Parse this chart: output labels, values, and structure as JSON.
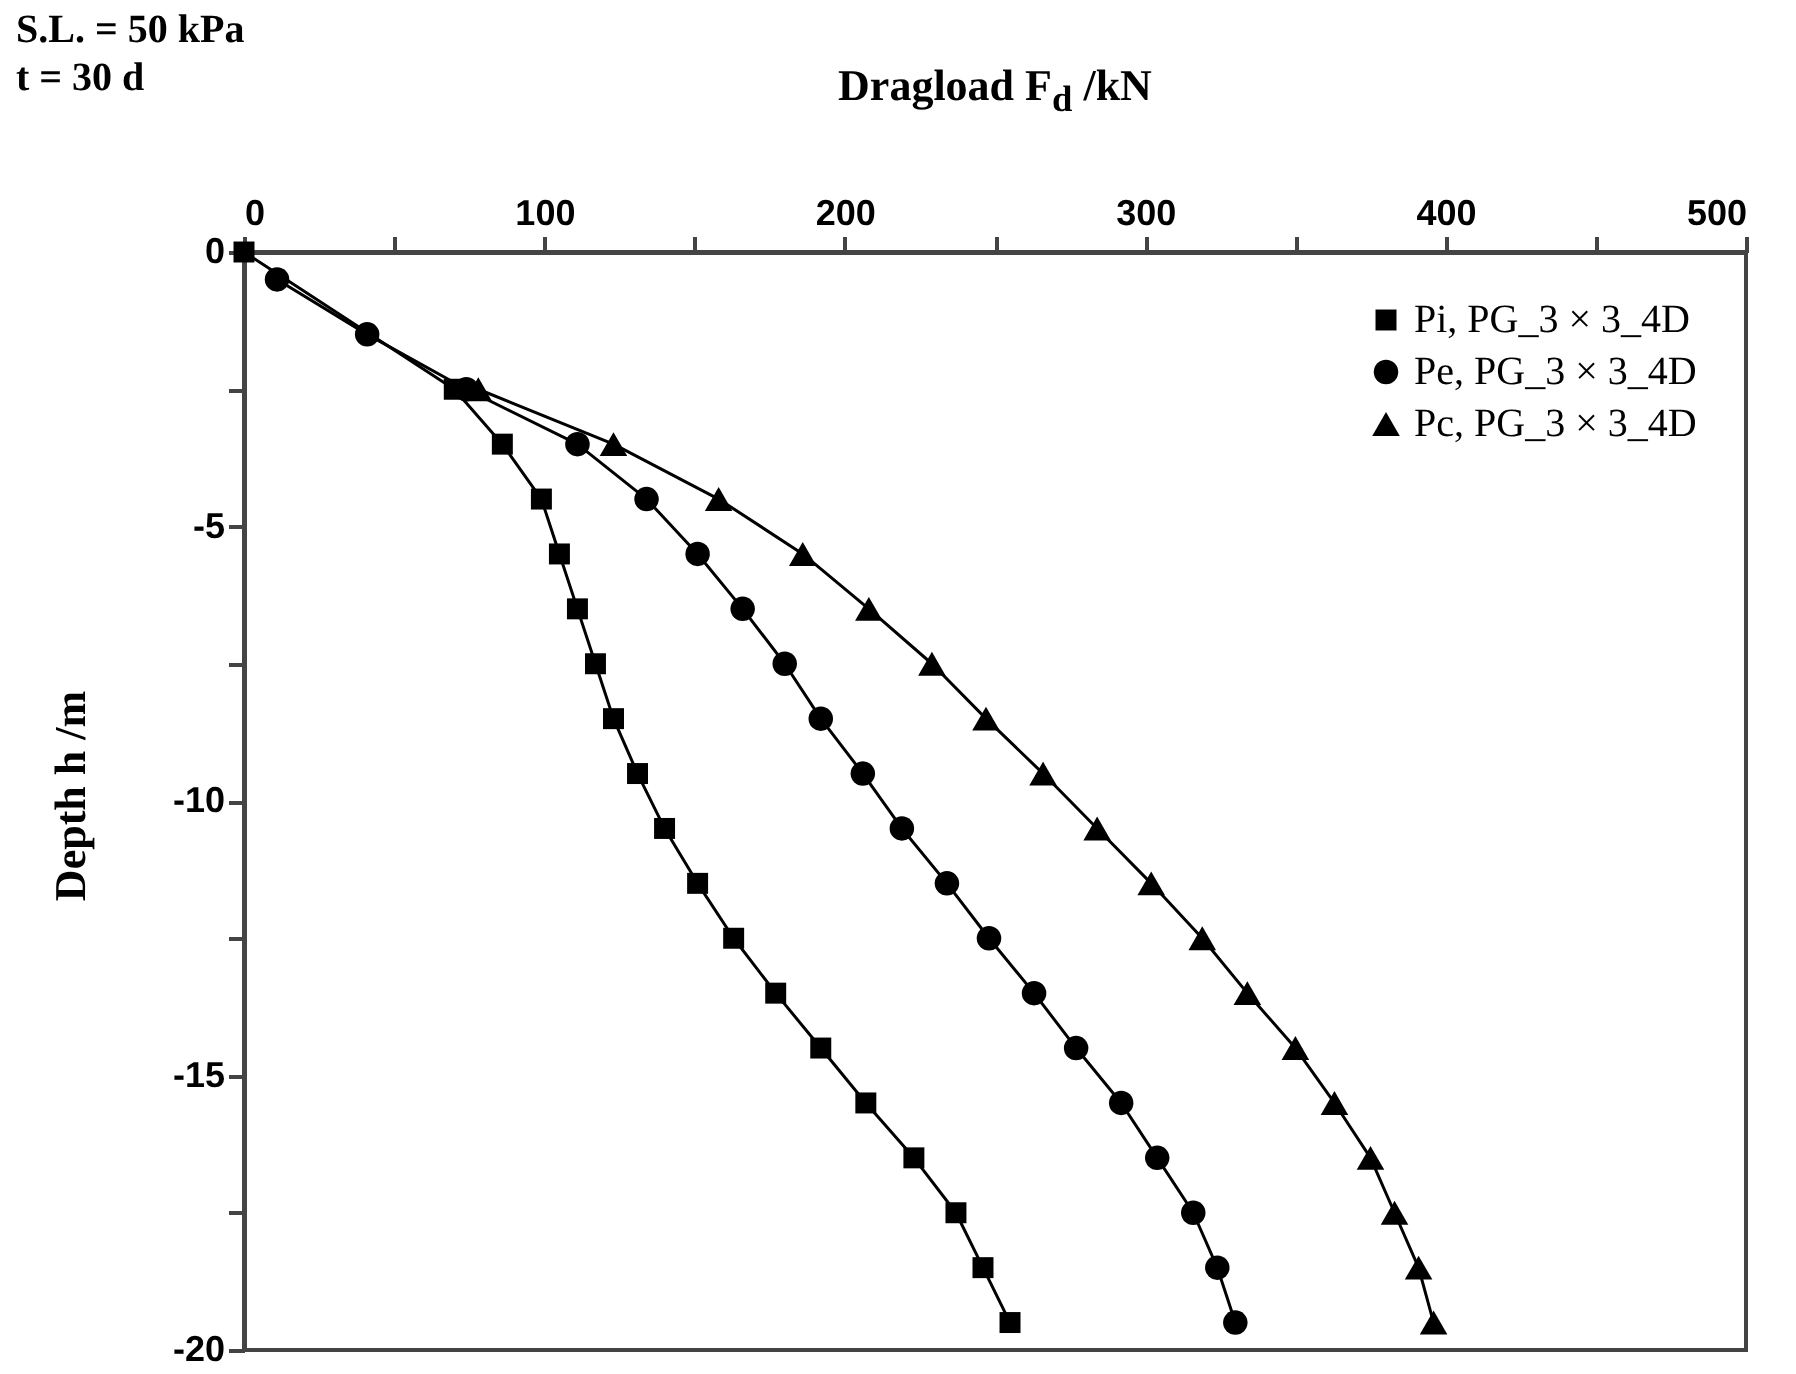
{
  "chart_data": {
    "type": "line",
    "xlabel": "Dragload F$_{d}$ /kN",
    "ylabel": "Depth h /m",
    "annotations": [
      "S.L. = 50 kPa",
      "t = 30 d"
    ],
    "xlim": [
      0,
      500
    ],
    "xticks": [
      0,
      {
        "value": 50,
        "label": null
      },
      100,
      {
        "value": 150,
        "label": null
      },
      200,
      {
        "value": 250,
        "label": null
      },
      300,
      {
        "value": 350,
        "label": null
      },
      400,
      {
        "value": 450,
        "label": null
      },
      500
    ],
    "ylim": [
      -20,
      0
    ],
    "yticks": [
      -20,
      {
        "value": -17.5,
        "label": null
      },
      -15,
      {
        "value": -12.5,
        "label": null
      },
      -10,
      {
        "value": -7.5,
        "label": null
      },
      -5,
      {
        "value": -2.5,
        "label": null
      },
      0
    ],
    "grid": false,
    "legend": "top right",
    "line_style": "solid",
    "series": [
      {
        "name": "Pi, PG_3 × 3_4D",
        "color": "#000000",
        "marker": "square",
        "x": [
          0,
          null,
          null,
          70,
          86,
          99,
          105,
          111,
          117,
          123,
          131,
          140,
          151,
          163,
          177,
          192,
          207,
          223,
          237,
          246,
          255
        ],
        "values": [
          0,
          null,
          null,
          -2.5,
          -3.5,
          -4.5,
          -5.5,
          -6.5,
          -7.5,
          -8.5,
          -9.5,
          -10.5,
          -11.5,
          -12.5,
          -13.5,
          -14.5,
          -15.5,
          -16.5,
          -17.5,
          -18.5,
          -19.5
        ]
      },
      {
        "name": "Pe, PG_3 × 3_4D",
        "color": "#000000",
        "marker": "circle",
        "x": [
          11,
          41,
          74,
          111,
          134,
          151,
          166,
          180,
          192,
          206,
          219,
          234,
          248,
          263,
          277,
          292,
          304,
          316,
          324,
          330
        ],
        "values": [
          -0.5,
          -1.5,
          -2.5,
          -3.5,
          -4.5,
          -5.5,
          -6.5,
          -7.5,
          -8.5,
          -9.5,
          -10.5,
          -11.5,
          -12.5,
          -13.5,
          -14.5,
          -15.5,
          -16.5,
          -17.5,
          -18.5,
          -19.5
        ]
      },
      {
        "name": "Pc, PG_3 × 3_4D",
        "color": "#000000",
        "marker": "triangle",
        "x": [
          null,
          null,
          78,
          123,
          158,
          186,
          208,
          229,
          247,
          266,
          284,
          302,
          319,
          334,
          350,
          363,
          375,
          383,
          391,
          396
        ],
        "values": [
          null,
          null,
          -2.5,
          -3.5,
          -4.5,
          -5.5,
          -6.5,
          -7.5,
          -8.5,
          -9.5,
          -10.5,
          -11.5,
          -12.5,
          -13.5,
          -14.5,
          -15.5,
          -16.5,
          -17.5,
          -18.5,
          -19.5
        ]
      }
    ]
  }
}
